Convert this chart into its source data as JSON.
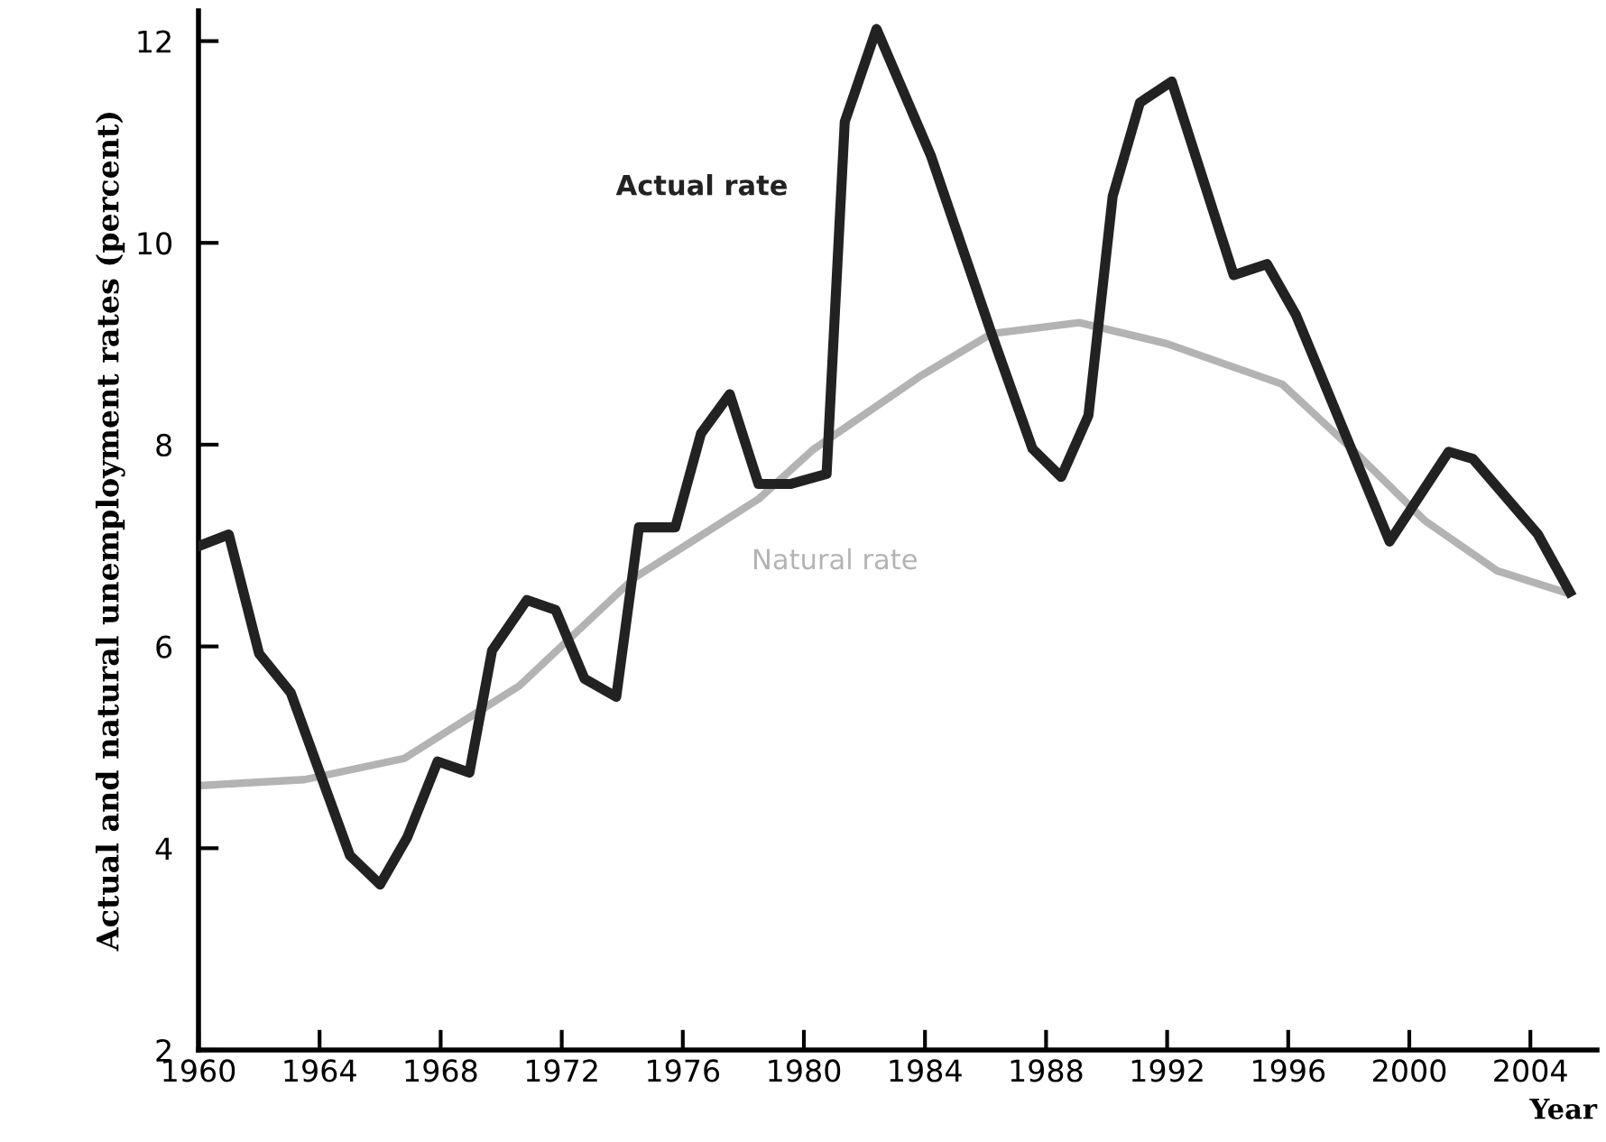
{
  "chart_data": {
    "type": "line",
    "xlabel": "Year",
    "ylabel": "Actual and natural unemployment rates (percent)",
    "xlim": [
      1960,
      2006.2
    ],
    "ylim": [
      2,
      12.3
    ],
    "xticks": [
      1960,
      1964,
      1968,
      1972,
      1976,
      1980,
      1984,
      1988,
      1992,
      1996,
      2000,
      2004
    ],
    "yticks": [
      2,
      4,
      6,
      8,
      10,
      12
    ],
    "grid": false,
    "legend": false,
    "series": [
      {
        "name": "Natural rate",
        "color": "#b3b3b3",
        "x": [
          1960,
          1963.5,
          1966.8,
          1970.6,
          1974.4,
          1978.5,
          1980.3,
          1983.85,
          1986.2,
          1989.1,
          1992,
          1995.8,
          1998.2,
          2000.5,
          2002.9,
          2005.1
        ],
        "values": [
          4.62,
          4.68,
          4.89,
          5.61,
          6.68,
          7.46,
          7.95,
          8.68,
          9.1,
          9.21,
          9.0,
          8.6,
          7.93,
          7.25,
          6.75,
          6.54
        ]
      },
      {
        "name": "Actual rate",
        "color": "#222222",
        "x": [
          1960.05,
          1961,
          1962,
          1963.05,
          1965,
          1966,
          1966.9,
          1967.9,
          1968.95,
          1969.7,
          1970.85,
          1971.8,
          1972.75,
          1973.8,
          1974.55,
          1975.75,
          1976.6,
          1977.55,
          1978.5,
          1979.55,
          1980.75,
          1981.35,
          1982.4,
          1984.2,
          1986.2,
          1987.55,
          1988.5,
          1989.4,
          1990.2,
          1991.1,
          1992.15,
          1994.2,
          1995.3,
          1996.25,
          1999.35,
          2001.3,
          2002.1,
          2004.25,
          2005.3
        ],
        "values": [
          7.0,
          7.11,
          5.93,
          5.54,
          3.93,
          3.64,
          4.11,
          4.86,
          4.75,
          5.96,
          6.46,
          6.36,
          5.68,
          5.5,
          7.18,
          7.18,
          8.11,
          8.5,
          7.61,
          7.61,
          7.71,
          11.2,
          12.12,
          10.86,
          9.1,
          7.96,
          7.68,
          8.29,
          10.46,
          11.39,
          11.6,
          9.68,
          9.79,
          9.29,
          7.04,
          7.93,
          7.86,
          7.11,
          6.54
        ]
      }
    ]
  }
}
